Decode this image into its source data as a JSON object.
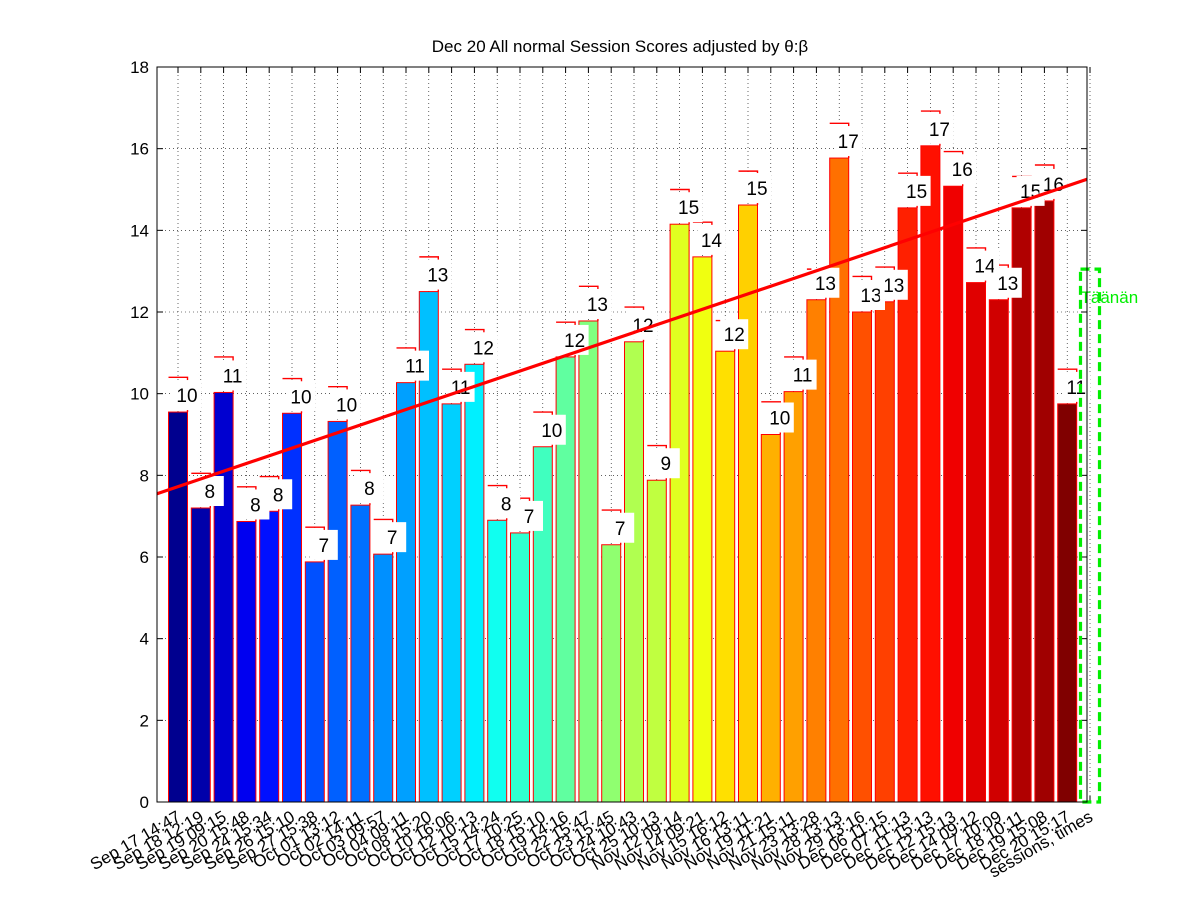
{
  "chart_data": {
    "type": "bar",
    "title": "Dec 20 All normal Session Scores adjusted by θ:β",
    "xlabel": "",
    "ylabel": "",
    "ylim": [
      0,
      18
    ],
    "yticks": [
      0,
      2,
      4,
      6,
      8,
      10,
      12,
      14,
      16,
      18
    ],
    "grid": true,
    "categories": [
      "Sep 17 14:47",
      "Sep 18 12:19",
      "Sep 19 09:15",
      "Sep 20 15:48",
      "Sep 24 15:34",
      "Sep 26 15:10",
      "Sep 27 15:38",
      "Oct 01 13:12",
      "Oct 02 14:11",
      "Oct 03 09:57",
      "Oct 04 09:11",
      "Oct 08 15:20",
      "Oct 10 16:06",
      "Oct 12 10:13",
      "Oct 15 14:24",
      "Oct 17 10:25",
      "Oct 18 15:10",
      "Oct 19 14:16",
      "Oct 22 15:47",
      "Oct 23 15:45",
      "Oct 24 10:43",
      "Oct 25 10:13",
      "Nov 12 09:14",
      "Nov 14 09:21",
      "Nov 15 16:12",
      "Nov 16 13:11",
      "Nov 19 11:21",
      "Nov 21 15:11",
      "Nov 23 13:28",
      "Nov 28 13:13",
      "Nov 29 13:16",
      "Dec 06 11:15",
      "Dec 07 11:13",
      "Dec 11 15:13",
      "Dec 12 15:13",
      "Dec 14 09:12",
      "Dec 17 10:09",
      "Dec 18 10:11",
      "Dec 19 15:08",
      "Dec 20 15:17",
      "sessions, times"
    ],
    "values": [
      9.55,
      7.2,
      10.03,
      6.87,
      7.12,
      9.52,
      5.88,
      9.32,
      7.27,
      6.07,
      10.27,
      12.5,
      9.75,
      10.72,
      6.9,
      6.59,
      8.7,
      10.9,
      11.78,
      6.3,
      11.27,
      7.88,
      14.15,
      13.35,
      11.04,
      14.62,
      9.0,
      10.05,
      12.3,
      15.77,
      12.0,
      12.25,
      14.55,
      16.07,
      15.08,
      12.72,
      12.3,
      14.55,
      14.72,
      9.75
    ],
    "whisker_tops": [
      10.4,
      8.05,
      10.9,
      7.72,
      7.97,
      10.37,
      6.73,
      10.17,
      8.12,
      6.92,
      11.12,
      13.35,
      10.6,
      11.57,
      7.75,
      7.44,
      9.55,
      11.75,
      12.63,
      7.15,
      12.12,
      8.73,
      15.0,
      14.2,
      11.79,
      15.45,
      9.8,
      10.9,
      13.05,
      16.62,
      12.87,
      13.1,
      15.4,
      16.92,
      15.93,
      13.57,
      13.15,
      15.32,
      15.6,
      10.6
    ],
    "labels": [
      "10",
      "8",
      "11",
      "8",
      "8",
      "10",
      "7",
      "10",
      "8",
      "7",
      "11",
      "13",
      "11",
      "12",
      "8",
      "7",
      "10",
      "12",
      "13",
      "7",
      "12",
      "9",
      "15",
      "14",
      "12",
      "15",
      "10",
      "11",
      "13",
      "17",
      "13",
      "13",
      "15",
      "17",
      "16",
      "14",
      "13",
      "15",
      "16",
      "11"
    ],
    "bar_colors": [
      "#00008f",
      "#0000aa",
      "#0000d0",
      "#0000f0",
      "#0010ff",
      "#0030ff",
      "#0050ff",
      "#0060ff",
      "#0070ff",
      "#0090ff",
      "#00a0ff",
      "#00c0ff",
      "#00d0ff",
      "#00f0ff",
      "#10fff0",
      "#30ffd0",
      "#40ffbf",
      "#60ffa0",
      "#80ff80",
      "#90ff70",
      "#b0ff50",
      "#c0ff40",
      "#e0ff20",
      "#f0ff10",
      "#ffe000",
      "#ffd000",
      "#ffb000",
      "#ffa000",
      "#ff8000",
      "#ff7000",
      "#ff5000",
      "#ff4000",
      "#ff2000",
      "#ff1000",
      "#f00000",
      "#e00000",
      "#d00000",
      "#b00000",
      "#a00000",
      "#800000"
    ],
    "trend_line": {
      "x_start": 0,
      "y_start": 7.55,
      "x_end": 40.5,
      "y_end": 15.25,
      "color": "#ff0000"
    },
    "today": {
      "label": "Täänän",
      "index": 40,
      "top": 13.05,
      "color": "#00ee00"
    }
  }
}
